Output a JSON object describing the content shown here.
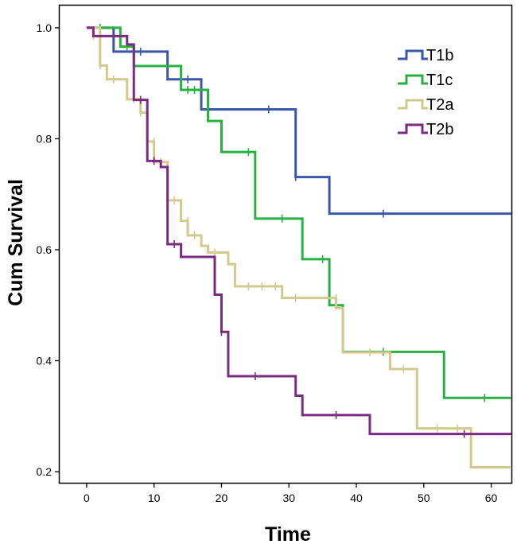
{
  "chart_data": {
    "type": "line",
    "subtype": "kaplan-meier",
    "xlabel": "Time",
    "ylabel": "Cum Survival",
    "xlim": [
      -4,
      63
    ],
    "ylim": [
      0.18,
      1.04
    ],
    "xticks": [
      0,
      10,
      20,
      30,
      40,
      50,
      60
    ],
    "yticks": [
      0.2,
      0.4,
      0.6,
      0.8,
      1.0
    ],
    "ytick_labels": [
      "0.2",
      "0.4",
      "0.6",
      "0.8",
      "1.0"
    ],
    "legend_position": "top-right",
    "series": [
      {
        "name": "T1b",
        "color": "#3a58a6",
        "steps": [
          [
            0,
            1.0
          ],
          [
            4,
            0.957
          ],
          [
            12,
            0.907
          ],
          [
            17,
            0.853
          ],
          [
            31,
            0.731
          ],
          [
            36,
            0.665
          ],
          [
            63,
            0.665
          ]
        ],
        "censored": [
          [
            8,
            0.957
          ],
          [
            15,
            0.907
          ],
          [
            27,
            0.853
          ],
          [
            31,
            0.731
          ],
          [
            44,
            0.665
          ]
        ]
      },
      {
        "name": "T1c",
        "color": "#27b140",
        "steps": [
          [
            0,
            1.0
          ],
          [
            5,
            0.966
          ],
          [
            7,
            0.931
          ],
          [
            14,
            0.888
          ],
          [
            18,
            0.832
          ],
          [
            20,
            0.776
          ],
          [
            25,
            0.656
          ],
          [
            32,
            0.583
          ],
          [
            36,
            0.5
          ],
          [
            38,
            0.416
          ],
          [
            53,
            0.333
          ],
          [
            63,
            0.333
          ]
        ],
        "censored": [
          [
            2,
            1.0
          ],
          [
            6,
            0.966
          ],
          [
            15,
            0.888
          ],
          [
            16,
            0.888
          ],
          [
            24,
            0.776
          ],
          [
            29,
            0.656
          ],
          [
            35,
            0.583
          ],
          [
            37,
            0.5
          ],
          [
            44,
            0.416
          ],
          [
            59,
            0.333
          ]
        ]
      },
      {
        "name": "T2a",
        "color": "#d2c98c",
        "steps": [
          [
            0,
            1.0
          ],
          [
            2,
            0.932
          ],
          [
            3,
            0.907
          ],
          [
            6,
            0.871
          ],
          [
            8,
            0.847
          ],
          [
            9,
            0.795
          ],
          [
            10,
            0.758
          ],
          [
            12,
            0.689
          ],
          [
            14,
            0.652
          ],
          [
            15,
            0.626
          ],
          [
            17,
            0.607
          ],
          [
            18,
            0.595
          ],
          [
            21,
            0.574
          ],
          [
            22,
            0.534
          ],
          [
            29,
            0.513
          ],
          [
            37,
            0.495
          ],
          [
            38,
            0.415
          ],
          [
            45,
            0.385
          ],
          [
            49,
            0.278
          ],
          [
            57,
            0.208
          ],
          [
            63,
            0.208
          ]
        ],
        "censored": [
          [
            1,
            0.985
          ],
          [
            2,
            0.932
          ],
          [
            4,
            0.907
          ],
          [
            7,
            0.871
          ],
          [
            8,
            0.847
          ],
          [
            10,
            0.795
          ],
          [
            11,
            0.758
          ],
          [
            13,
            0.689
          ],
          [
            15,
            0.652
          ],
          [
            16,
            0.626
          ],
          [
            19,
            0.595
          ],
          [
            24,
            0.534
          ],
          [
            26,
            0.534
          ],
          [
            28,
            0.534
          ],
          [
            31,
            0.513
          ],
          [
            37,
            0.513
          ],
          [
            42,
            0.415
          ],
          [
            47,
            0.385
          ],
          [
            52,
            0.278
          ],
          [
            55,
            0.278
          ]
        ]
      },
      {
        "name": "T2b",
        "color": "#7b2a83",
        "steps": [
          [
            0,
            1.0
          ],
          [
            1,
            0.985
          ],
          [
            6,
            0.97
          ],
          [
            7,
            0.87
          ],
          [
            9,
            0.76
          ],
          [
            11,
            0.749
          ],
          [
            12,
            0.61
          ],
          [
            14,
            0.587
          ],
          [
            19,
            0.519
          ],
          [
            20,
            0.452
          ],
          [
            21,
            0.372
          ],
          [
            31,
            0.337
          ],
          [
            32,
            0.302
          ],
          [
            42,
            0.268
          ],
          [
            63,
            0.268
          ]
        ],
        "censored": [
          [
            8,
            0.87
          ],
          [
            10,
            0.76
          ],
          [
            13,
            0.61
          ],
          [
            20,
            0.452
          ],
          [
            25,
            0.372
          ],
          [
            37,
            0.302
          ],
          [
            56,
            0.268
          ]
        ]
      }
    ]
  }
}
